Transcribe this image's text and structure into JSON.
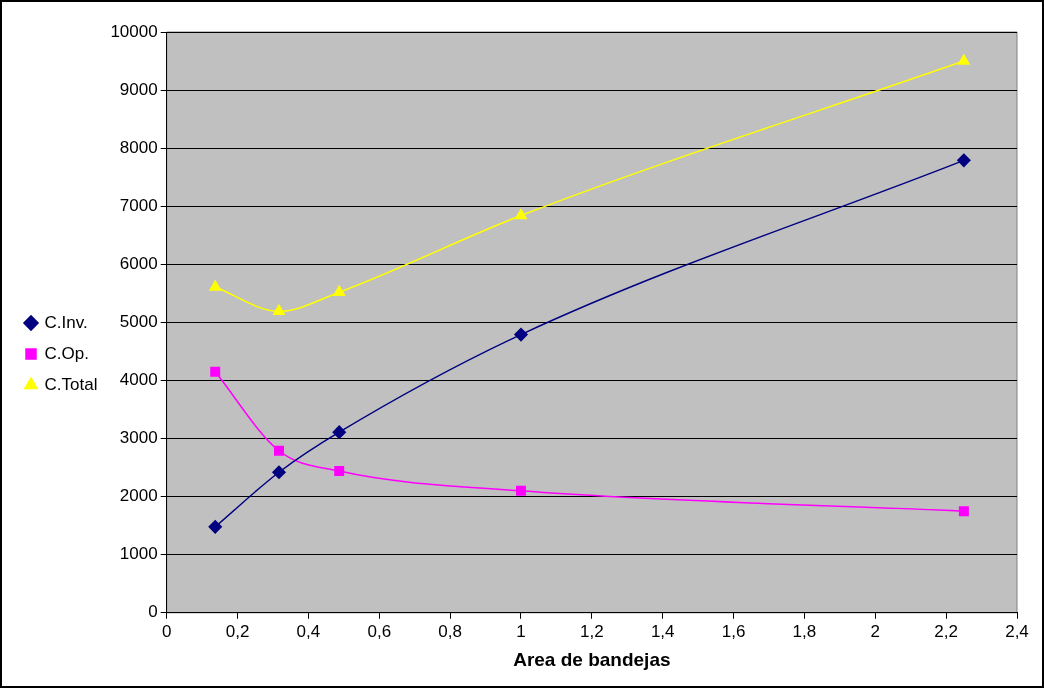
{
  "chart_data": {
    "type": "line",
    "xlabel": "Area de bandejas",
    "legend": "left",
    "grid": "y",
    "line_style": "solid",
    "xlim": [
      0,
      2.4
    ],
    "xticks": [
      0,
      {
        "value": 0.2,
        "label": "0,2"
      },
      {
        "value": 0.4,
        "label": "0,4"
      },
      {
        "value": 0.6,
        "label": "0,6"
      },
      {
        "value": 0.8,
        "label": "0,8"
      },
      1,
      {
        "value": 1.2,
        "label": "1,2"
      },
      {
        "value": 1.4,
        "label": "1,4"
      },
      {
        "value": 1.6,
        "label": "1,6"
      },
      {
        "value": 1.8,
        "label": "1,8"
      },
      2,
      {
        "value": 2.2,
        "label": "2,2"
      },
      {
        "value": 2.4,
        "label": "2,4"
      }
    ],
    "ylim": [
      0,
      10000
    ],
    "yticks": [
      0,
      1000,
      2000,
      3000,
      4000,
      5000,
      6000,
      7000,
      8000,
      9000,
      10000
    ],
    "x": [
      0.137,
      0.317,
      0.487,
      1.0,
      2.25
    ],
    "series": [
      {
        "name": "C.Inv.",
        "color": "#000080",
        "marker": "diamond",
        "values": [
          1480,
          2420,
          3110,
          4790,
          7790
        ]
      },
      {
        "name": "C.Op.",
        "color": "#ff00ff",
        "marker": "square",
        "values": [
          4150,
          2790,
          2440,
          2100,
          1750
        ]
      },
      {
        "name": "C.Total",
        "color": "#ffff00",
        "marker": "triangle",
        "values": [
          5610,
          5190,
          5520,
          6840,
          9500
        ]
      }
    ]
  }
}
